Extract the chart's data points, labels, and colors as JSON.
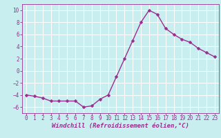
{
  "x": [
    0,
    1,
    2,
    3,
    4,
    5,
    6,
    7,
    8,
    9,
    10,
    11,
    12,
    13,
    14,
    15,
    16,
    17,
    18,
    19,
    20,
    21,
    22,
    23
  ],
  "y": [
    -4,
    -4.2,
    -4.5,
    -5,
    -5,
    -5,
    -5,
    -6,
    -5.8,
    -4.7,
    -4,
    -1,
    2,
    5,
    8,
    10,
    9.3,
    7,
    6,
    5.2,
    4.7,
    3.7,
    3,
    2.3
  ],
  "line_color": "#9B2D8E",
  "marker": "D",
  "markersize": 2.5,
  "linewidth": 1.0,
  "bg_color": "#C8EEF0",
  "grid_color": "#FFFFFF",
  "xlabel": "Windchill (Refroidissement éolien,°C)",
  "xlabel_fontsize": 6.5,
  "tick_fontsize": 5.5,
  "ylim": [
    -7,
    11
  ],
  "xlim": [
    -0.5,
    23.5
  ],
  "yticks": [
    -6,
    -4,
    -2,
    0,
    2,
    4,
    6,
    8,
    10
  ],
  "xticks": [
    0,
    1,
    2,
    3,
    4,
    5,
    6,
    7,
    8,
    9,
    10,
    11,
    12,
    13,
    14,
    15,
    16,
    17,
    18,
    19,
    20,
    21,
    22,
    23
  ]
}
